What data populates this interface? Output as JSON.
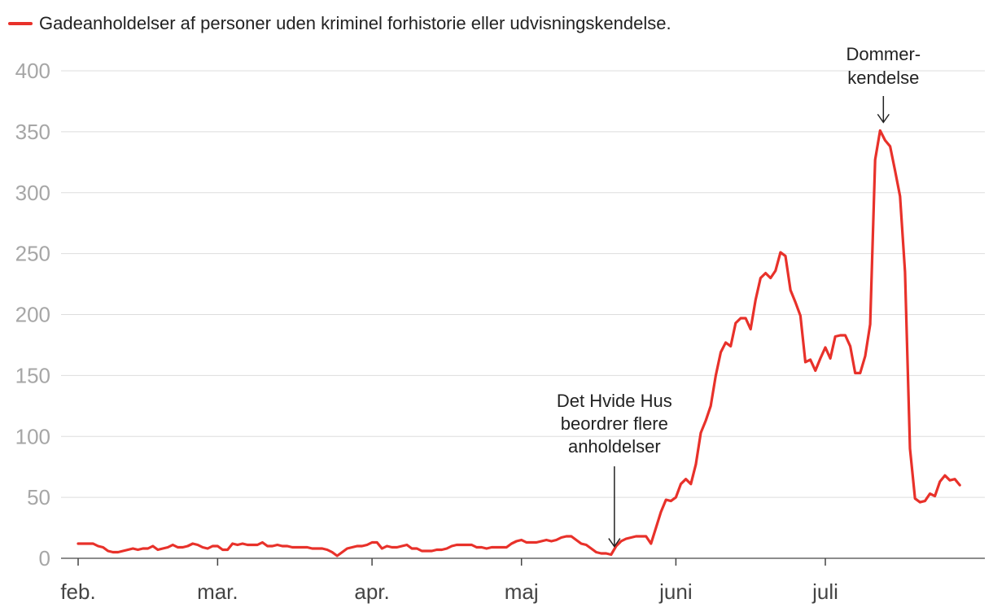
{
  "chart_data": {
    "type": "line",
    "title": "",
    "xlabel": "",
    "ylabel": "",
    "ylim": [
      0,
      400
    ],
    "yticks": [
      0,
      50,
      100,
      150,
      200,
      250,
      300,
      350,
      400
    ],
    "grid": true,
    "legend_position": "top-left",
    "x_ticks": [
      {
        "label": "feb.",
        "date": "2025-02-01"
      },
      {
        "label": "mar.",
        "date": "2025-03-01"
      },
      {
        "label": "apr.",
        "date": "2025-04-01"
      },
      {
        "label": "maj",
        "date": "2025-05-01"
      },
      {
        "label": "juni",
        "date": "2025-06-01"
      },
      {
        "label": "juli",
        "date": "2025-07-01"
      }
    ],
    "series": [
      {
        "name": "Gadeanholdelser af personer uden kriminel forhistorie eller udvisningskendelse.",
        "color": "#e8312a",
        "points": [
          [
            "2025-02-01",
            12
          ],
          [
            "2025-02-02",
            12
          ],
          [
            "2025-02-03",
            12
          ],
          [
            "2025-02-04",
            12
          ],
          [
            "2025-02-05",
            10
          ],
          [
            "2025-02-06",
            9
          ],
          [
            "2025-02-07",
            6
          ],
          [
            "2025-02-08",
            5
          ],
          [
            "2025-02-09",
            5
          ],
          [
            "2025-02-10",
            6
          ],
          [
            "2025-02-11",
            7
          ],
          [
            "2025-02-12",
            8
          ],
          [
            "2025-02-13",
            7
          ],
          [
            "2025-02-14",
            8
          ],
          [
            "2025-02-15",
            8
          ],
          [
            "2025-02-16",
            10
          ],
          [
            "2025-02-17",
            7
          ],
          [
            "2025-02-18",
            8
          ],
          [
            "2025-02-19",
            9
          ],
          [
            "2025-02-20",
            11
          ],
          [
            "2025-02-21",
            9
          ],
          [
            "2025-02-22",
            9
          ],
          [
            "2025-02-23",
            10
          ],
          [
            "2025-02-24",
            12
          ],
          [
            "2025-02-25",
            11
          ],
          [
            "2025-02-26",
            9
          ],
          [
            "2025-02-27",
            8
          ],
          [
            "2025-02-28",
            10
          ],
          [
            "2025-03-01",
            10
          ],
          [
            "2025-03-02",
            7
          ],
          [
            "2025-03-03",
            7
          ],
          [
            "2025-03-04",
            12
          ],
          [
            "2025-03-05",
            11
          ],
          [
            "2025-03-06",
            12
          ],
          [
            "2025-03-07",
            11
          ],
          [
            "2025-03-08",
            11
          ],
          [
            "2025-03-09",
            11
          ],
          [
            "2025-03-10",
            13
          ],
          [
            "2025-03-11",
            10
          ],
          [
            "2025-03-12",
            10
          ],
          [
            "2025-03-13",
            11
          ],
          [
            "2025-03-14",
            10
          ],
          [
            "2025-03-15",
            10
          ],
          [
            "2025-03-16",
            9
          ],
          [
            "2025-03-17",
            9
          ],
          [
            "2025-03-18",
            9
          ],
          [
            "2025-03-19",
            9
          ],
          [
            "2025-03-20",
            8
          ],
          [
            "2025-03-21",
            8
          ],
          [
            "2025-03-22",
            8
          ],
          [
            "2025-03-23",
            7
          ],
          [
            "2025-03-24",
            5
          ],
          [
            "2025-03-25",
            2
          ],
          [
            "2025-03-26",
            5
          ],
          [
            "2025-03-27",
            8
          ],
          [
            "2025-03-28",
            9
          ],
          [
            "2025-03-29",
            10
          ],
          [
            "2025-03-30",
            10
          ],
          [
            "2025-03-31",
            11
          ],
          [
            "2025-04-01",
            13
          ],
          [
            "2025-04-02",
            13
          ],
          [
            "2025-04-03",
            8
          ],
          [
            "2025-04-04",
            10
          ],
          [
            "2025-04-05",
            9
          ],
          [
            "2025-04-06",
            9
          ],
          [
            "2025-04-07",
            10
          ],
          [
            "2025-04-08",
            11
          ],
          [
            "2025-04-09",
            8
          ],
          [
            "2025-04-10",
            8
          ],
          [
            "2025-04-11",
            6
          ],
          [
            "2025-04-12",
            6
          ],
          [
            "2025-04-13",
            6
          ],
          [
            "2025-04-14",
            7
          ],
          [
            "2025-04-15",
            7
          ],
          [
            "2025-04-16",
            8
          ],
          [
            "2025-04-17",
            10
          ],
          [
            "2025-04-18",
            11
          ],
          [
            "2025-04-19",
            11
          ],
          [
            "2025-04-20",
            11
          ],
          [
            "2025-04-21",
            11
          ],
          [
            "2025-04-22",
            9
          ],
          [
            "2025-04-23",
            9
          ],
          [
            "2025-04-24",
            8
          ],
          [
            "2025-04-25",
            9
          ],
          [
            "2025-04-26",
            9
          ],
          [
            "2025-04-27",
            9
          ],
          [
            "2025-04-28",
            9
          ],
          [
            "2025-04-29",
            12
          ],
          [
            "2025-04-30",
            14
          ],
          [
            "2025-05-01",
            15
          ],
          [
            "2025-05-02",
            13
          ],
          [
            "2025-05-03",
            13
          ],
          [
            "2025-05-04",
            13
          ],
          [
            "2025-05-05",
            14
          ],
          [
            "2025-05-06",
            15
          ],
          [
            "2025-05-07",
            14
          ],
          [
            "2025-05-08",
            15
          ],
          [
            "2025-05-09",
            17
          ],
          [
            "2025-05-10",
            18
          ],
          [
            "2025-05-11",
            18
          ],
          [
            "2025-05-12",
            15
          ],
          [
            "2025-05-13",
            12
          ],
          [
            "2025-05-14",
            11
          ],
          [
            "2025-05-15",
            8
          ],
          [
            "2025-05-16",
            5
          ],
          [
            "2025-05-17",
            4
          ],
          [
            "2025-05-18",
            4
          ],
          [
            "2025-05-19",
            3
          ],
          [
            "2025-05-20",
            10
          ],
          [
            "2025-05-21",
            14
          ],
          [
            "2025-05-22",
            16
          ],
          [
            "2025-05-23",
            17
          ],
          [
            "2025-05-24",
            18
          ],
          [
            "2025-05-25",
            18
          ],
          [
            "2025-05-26",
            18
          ],
          [
            "2025-05-27",
            12
          ],
          [
            "2025-05-28",
            25
          ],
          [
            "2025-05-29",
            38
          ],
          [
            "2025-05-30",
            48
          ],
          [
            "2025-05-31",
            47
          ],
          [
            "2025-06-01",
            50
          ],
          [
            "2025-06-02",
            61
          ],
          [
            "2025-06-03",
            65
          ],
          [
            "2025-06-04",
            61
          ],
          [
            "2025-06-05",
            77
          ],
          [
            "2025-06-06",
            103
          ],
          [
            "2025-06-07",
            113
          ],
          [
            "2025-06-08",
            125
          ],
          [
            "2025-06-09",
            150
          ],
          [
            "2025-06-10",
            169
          ],
          [
            "2025-06-11",
            177
          ],
          [
            "2025-06-12",
            174
          ],
          [
            "2025-06-13",
            193
          ],
          [
            "2025-06-14",
            197
          ],
          [
            "2025-06-15",
            197
          ],
          [
            "2025-06-16",
            188
          ],
          [
            "2025-06-17",
            212
          ],
          [
            "2025-06-18",
            230
          ],
          [
            "2025-06-19",
            234
          ],
          [
            "2025-06-20",
            230
          ],
          [
            "2025-06-21",
            236
          ],
          [
            "2025-06-22",
            251
          ],
          [
            "2025-06-23",
            248
          ],
          [
            "2025-06-24",
            220
          ],
          [
            "2025-06-25",
            210
          ],
          [
            "2025-06-26",
            199
          ],
          [
            "2025-06-27",
            161
          ],
          [
            "2025-06-28",
            163
          ],
          [
            "2025-06-29",
            154
          ],
          [
            "2025-06-30",
            164
          ],
          [
            "2025-07-01",
            173
          ],
          [
            "2025-07-02",
            164
          ],
          [
            "2025-07-03",
            182
          ],
          [
            "2025-07-04",
            183
          ],
          [
            "2025-07-05",
            183
          ],
          [
            "2025-07-06",
            174
          ],
          [
            "2025-07-07",
            152
          ],
          [
            "2025-07-08",
            152
          ],
          [
            "2025-07-09",
            166
          ],
          [
            "2025-07-10",
            192
          ],
          [
            "2025-07-11",
            327
          ],
          [
            "2025-07-12",
            351
          ],
          [
            "2025-07-13",
            343
          ],
          [
            "2025-07-14",
            338
          ],
          [
            "2025-07-15",
            318
          ],
          [
            "2025-07-16",
            297
          ],
          [
            "2025-07-17",
            235
          ],
          [
            "2025-07-18",
            90
          ],
          [
            "2025-07-19",
            49
          ],
          [
            "2025-07-20",
            46
          ],
          [
            "2025-07-21",
            47
          ],
          [
            "2025-07-22",
            53
          ],
          [
            "2025-07-23",
            51
          ],
          [
            "2025-07-24",
            63
          ],
          [
            "2025-07-25",
            68
          ],
          [
            "2025-07-26",
            64
          ],
          [
            "2025-07-27",
            65
          ],
          [
            "2025-07-28",
            60
          ]
        ]
      }
    ],
    "annotations": [
      {
        "id": "whitehouse",
        "date": "2025-05-19",
        "value": 3,
        "lines": [
          "Det Hvide Hus",
          "beordrer flere",
          "anholdelser"
        ]
      },
      {
        "id": "court",
        "date": "2025-07-12",
        "value": 351,
        "lines": [
          "Dommer-",
          "kendelse"
        ]
      }
    ]
  }
}
